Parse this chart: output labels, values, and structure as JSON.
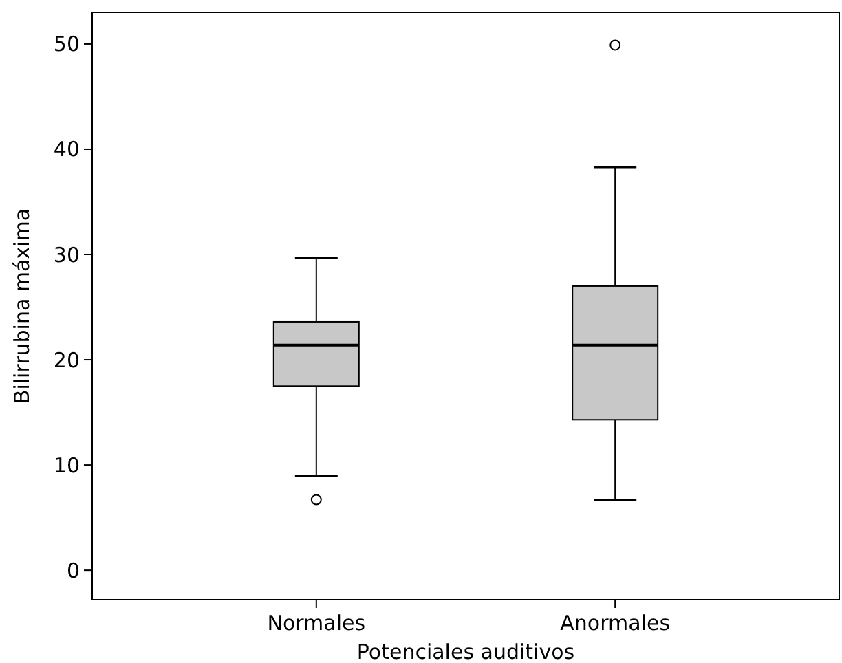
{
  "chart_data": {
    "type": "box",
    "xlabel": "Potenciales auditivos",
    "ylabel": "Bilirrubina máxima",
    "categories": [
      "Normales",
      "Anormales"
    ],
    "color": "#c8c8c8",
    "ylim": [
      -2.8,
      53
    ],
    "yticks": [
      0,
      10,
      20,
      30,
      40,
      50
    ],
    "boxes": [
      {
        "low": 9.0,
        "q1": 17.5,
        "median": 21.4,
        "q3": 23.6,
        "high": 29.7,
        "outliers": [
          6.7
        ]
      },
      {
        "low": 6.7,
        "q1": 14.3,
        "median": 21.4,
        "q3": 27.0,
        "high": 38.3,
        "outliers": [
          49.9
        ]
      }
    ]
  }
}
